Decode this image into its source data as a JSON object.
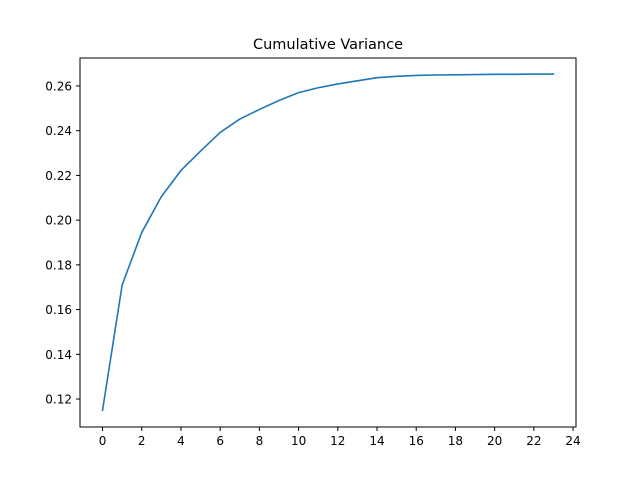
{
  "chart_data": {
    "type": "line",
    "title": "Cumulative Variance",
    "xlabel": "",
    "ylabel": "",
    "xlim": [
      -1.15,
      24.15
    ],
    "ylim": [
      0.1075,
      0.2725
    ],
    "xticks": [
      0,
      2,
      4,
      6,
      8,
      10,
      12,
      14,
      16,
      18,
      20,
      22,
      24
    ],
    "yticks": [
      0.12,
      0.14,
      0.16,
      0.18,
      0.2,
      0.22,
      0.24,
      0.26
    ],
    "ytick_labels": [
      "0.12",
      "0.14",
      "0.16",
      "0.18",
      "0.20",
      "0.22",
      "0.24",
      "0.26"
    ],
    "grid": false,
    "legend": "none",
    "series": [
      {
        "color": "#1f77b4",
        "x": [
          0,
          1,
          2,
          3,
          4,
          5,
          6,
          7,
          8,
          9,
          10,
          11,
          12,
          13,
          14,
          15,
          16,
          17,
          18,
          19,
          20,
          21,
          22,
          23
        ],
        "y": [
          0.115,
          0.171,
          0.1945,
          0.2105,
          0.2222,
          0.2309,
          0.2392,
          0.2452,
          0.2495,
          0.2535,
          0.257,
          0.2592,
          0.2609,
          0.2623,
          0.2637,
          0.2643,
          0.2647,
          0.2649,
          0.265,
          0.2651,
          0.2652,
          0.2652,
          0.2653,
          0.2653
        ]
      }
    ]
  }
}
